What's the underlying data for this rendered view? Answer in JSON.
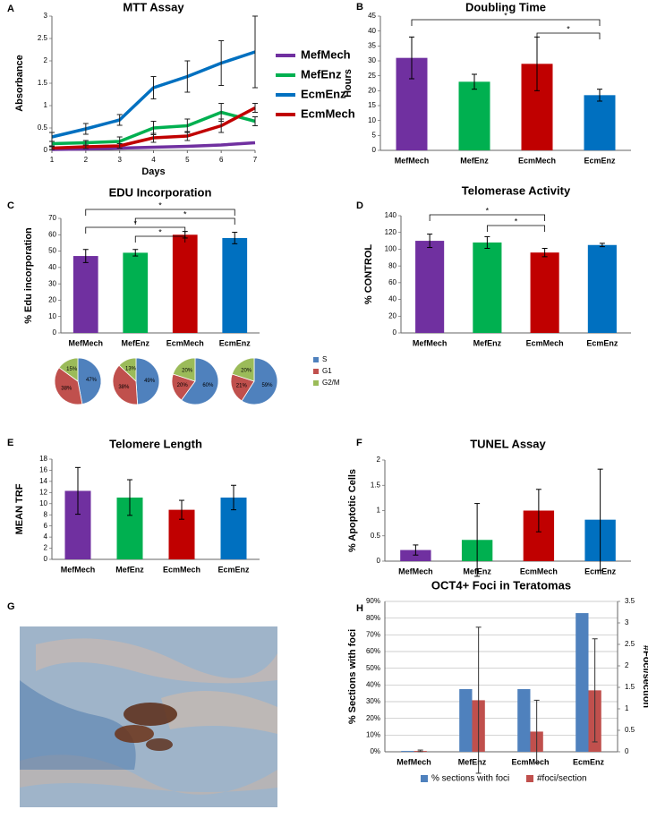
{
  "chart_data": [
    {
      "type": "line",
      "panel": "A",
      "title": "MTT Assay",
      "xlabel": "Days",
      "ylabel": "Absorbance",
      "x": [
        1,
        2,
        3,
        4,
        5,
        6,
        7
      ],
      "xlim": [
        1,
        7
      ],
      "xticks": [
        1,
        2,
        3,
        4,
        5,
        6,
        7
      ],
      "ylim": [
        0,
        3
      ],
      "yticks": [
        0,
        0.5,
        1,
        1.5,
        2,
        2.5,
        3
      ],
      "series": [
        {
          "name": "MefMech",
          "color": "#7030a0",
          "values": [
            0.02,
            0.03,
            0.05,
            0.07,
            0.09,
            0.12,
            0.17
          ]
        },
        {
          "name": "MefEnz",
          "color": "#00b050",
          "values": [
            0.15,
            0.17,
            0.2,
            0.5,
            0.55,
            0.85,
            0.65
          ],
          "errors": [
            0.05,
            0.05,
            0.1,
            0.15,
            0.15,
            0.2,
            0.1
          ]
        },
        {
          "name": "EcmEnz",
          "color": "#0070c0",
          "values": [
            0.3,
            0.48,
            0.68,
            1.4,
            1.65,
            1.95,
            2.2
          ],
          "errors": [
            0.1,
            0.12,
            0.12,
            0.25,
            0.35,
            0.5,
            0.8
          ]
        },
        {
          "name": "EcmMech",
          "color": "#c00000",
          "values": [
            0.05,
            0.08,
            0.1,
            0.28,
            0.32,
            0.55,
            0.95
          ],
          "errors": [
            0.03,
            0.04,
            0.05,
            0.1,
            0.1,
            0.15,
            0.1
          ]
        }
      ]
    },
    {
      "type": "bar",
      "panel": "B",
      "title": "Doubling Time",
      "ylabel": "Hours",
      "categories": [
        "MefMech",
        "MefEnz",
        "EcmMech",
        "EcmEnz"
      ],
      "values": [
        31,
        23,
        29,
        18.5
      ],
      "errors": [
        7,
        2.5,
        9,
        2
      ],
      "colors": [
        "#7030a0",
        "#00b050",
        "#c00000",
        "#0070c0"
      ],
      "ylim": [
        0,
        45
      ],
      "yticks": [
        0,
        5,
        10,
        15,
        20,
        25,
        30,
        35,
        40,
        45
      ],
      "significance": [
        "*",
        "*"
      ]
    },
    {
      "type": "bar",
      "panel": "C",
      "title": "EDU Incorporation",
      "ylabel": "% Edu incorporation",
      "categories": [
        "MefMech",
        "MefEnz",
        "EcmMech",
        "EcmEnz"
      ],
      "values": [
        47,
        49,
        60,
        58
      ],
      "errors": [
        4,
        2,
        2,
        3.5
      ],
      "colors": [
        "#7030a0",
        "#00b050",
        "#c00000",
        "#0070c0"
      ],
      "ylim": [
        0,
        70
      ],
      "yticks": [
        0,
        10,
        20,
        30,
        40,
        50,
        60,
        70
      ],
      "significance": [
        "*",
        "*",
        "*",
        "*"
      ]
    },
    {
      "type": "pie",
      "categories": [
        "S",
        "G1",
        "G2/M"
      ],
      "colors": [
        "#4f81bd",
        "#c0504d",
        "#9bbb59"
      ],
      "pies": [
        {
          "values": [
            47,
            38,
            15
          ],
          "value_labels": [
            "47%",
            "38%",
            "15%"
          ]
        },
        {
          "values": [
            49,
            38,
            13
          ],
          "value_labels": [
            "49%",
            "38%",
            "13%"
          ]
        },
        {
          "values": [
            60,
            20,
            20
          ],
          "value_labels": [
            "60%",
            "20%",
            "20%"
          ]
        },
        {
          "values": [
            59,
            21,
            20
          ],
          "value_labels": [
            "59%",
            "21%",
            "20%"
          ]
        }
      ]
    },
    {
      "type": "bar",
      "panel": "D",
      "title": "Telomerase Activity",
      "ylabel": "% CONTROL",
      "categories": [
        "MefMech",
        "MefEnz",
        "EcmMech",
        "EcmEnz"
      ],
      "values": [
        110,
        108,
        96,
        105
      ],
      "errors": [
        8,
        7,
        5,
        2
      ],
      "colors": [
        "#7030a0",
        "#00b050",
        "#c00000",
        "#0070c0"
      ],
      "ylim": [
        0,
        140
      ],
      "yticks": [
        0,
        20,
        40,
        60,
        80,
        100,
        120,
        140
      ],
      "significance": [
        "*",
        "*"
      ]
    },
    {
      "type": "bar",
      "panel": "E",
      "title": "Telomere Length",
      "ylabel": "MEAN TRF",
      "categories": [
        "MefMech",
        "MefEnz",
        "EcmMech",
        "EcmEnz"
      ],
      "values": [
        12.3,
        11.1,
        8.9,
        11.1
      ],
      "errors": [
        4.2,
        3.2,
        1.7,
        2.2
      ],
      "colors": [
        "#7030a0",
        "#00b050",
        "#c00000",
        "#0070c0"
      ],
      "ylim": [
        0,
        18
      ],
      "yticks": [
        0,
        2,
        4,
        6,
        8,
        10,
        12,
        14,
        16,
        18
      ]
    },
    {
      "type": "bar",
      "panel": "F",
      "title": "TUNEL Assay",
      "ylabel": "% Apoptotic Cells",
      "categories": [
        "MefMech",
        "MefEnz",
        "EcmMech",
        "EcmEnz"
      ],
      "values": [
        0.22,
        0.42,
        1.0,
        0.82
      ],
      "errors": [
        0.1,
        0.72,
        0.42,
        1.0
      ],
      "colors": [
        "#7030a0",
        "#00b050",
        "#c00000",
        "#0070c0"
      ],
      "ylim": [
        0,
        2
      ],
      "yticks": [
        0,
        0.5,
        1,
        1.5,
        2
      ]
    },
    {
      "type": "bar",
      "panel": "H",
      "title": "OCT4+ Foci in Teratomas",
      "ylabel": "% Sections with foci",
      "y2label": "#Foci/section",
      "categories": [
        "MefMech",
        "MefEnz",
        "EcmMech",
        "EcmEnz"
      ],
      "grid": true,
      "legend": "bottom",
      "ylim": [
        0,
        90
      ],
      "yticks": [
        {
          "value": 0,
          "label": "0%"
        },
        {
          "value": 10,
          "label": "10%"
        },
        {
          "value": 20,
          "label": "20%"
        },
        {
          "value": 30,
          "label": "30%"
        },
        {
          "value": 40,
          "label": "40%"
        },
        {
          "value": 50,
          "label": "50%"
        },
        {
          "value": 60,
          "label": "60%"
        },
        {
          "value": 70,
          "label": "70%"
        },
        {
          "value": 80,
          "label": "80%"
        },
        {
          "value": 90,
          "label": "90%"
        }
      ],
      "y2lim": [
        0,
        3.5
      ],
      "y2ticks": [
        0,
        0.5,
        1,
        1.5,
        2,
        2.5,
        3,
        3.5
      ],
      "series": [
        {
          "name": "% sections with foci",
          "color": "#4f81bd",
          "values": [
            0.5,
            37.5,
            37.5,
            83
          ]
        },
        {
          "name": "#foci/section",
          "color": "#c0504d",
          "axis": "y2",
          "values": [
            0.02,
            1.2,
            0.47,
            1.43
          ],
          "errors": [
            0.02,
            1.7,
            0.73,
            1.2
          ]
        }
      ]
    }
  ],
  "image_panel": {
    "panel": "G"
  }
}
